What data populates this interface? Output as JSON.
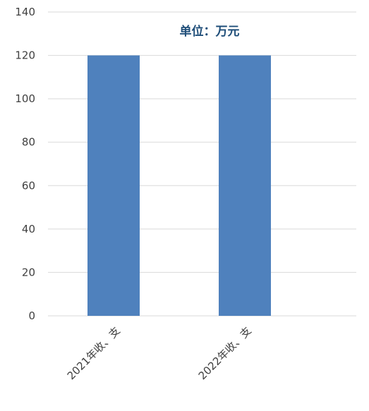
{
  "chart_data": {
    "type": "bar",
    "title": "单位：万元",
    "categories": [
      "2021年收、支",
      "2022年收、支"
    ],
    "series": [
      {
        "values": [
          120,
          120
        ]
      }
    ],
    "ylim": [
      0,
      140
    ],
    "yticks": [
      0,
      20,
      40,
      60,
      80,
      100,
      120,
      140
    ],
    "grid": true,
    "legend": "none",
    "colors": {
      "bar": "#4f81bd",
      "title": "#1f4e79"
    }
  }
}
